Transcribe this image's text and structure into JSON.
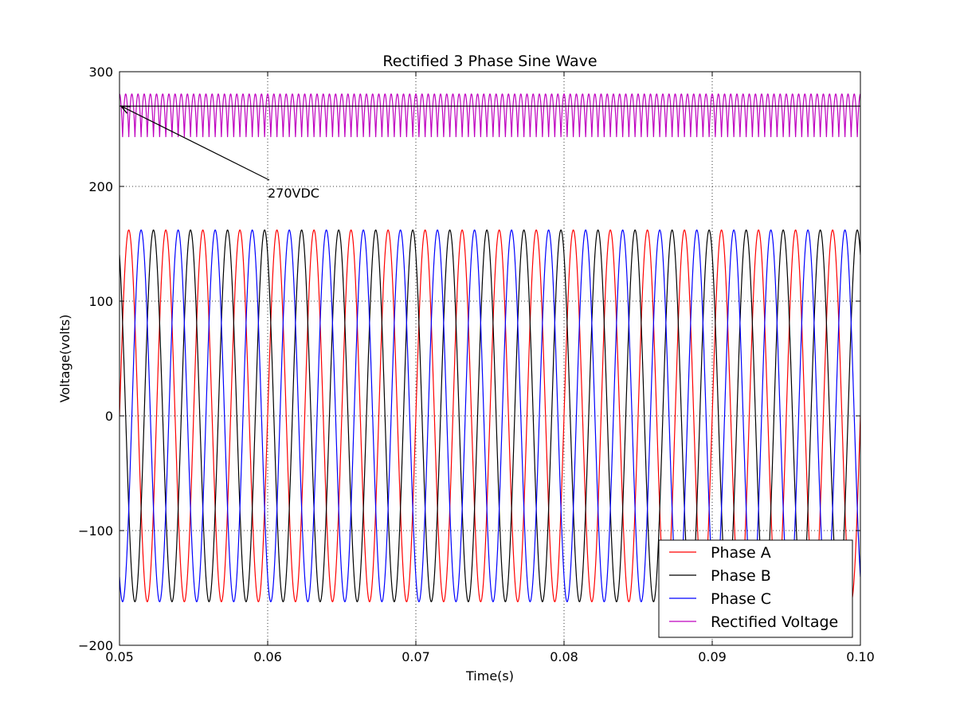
{
  "chart_data": {
    "type": "line",
    "title": "Rectified 3 Phase Sine Wave",
    "xlabel": "Time(s)",
    "ylabel": "Voltage(volts)",
    "xlim": [
      0.05,
      0.1
    ],
    "ylim": [
      -200,
      300
    ],
    "xticks": [
      0.05,
      0.06,
      0.07,
      0.08,
      0.09,
      0.1
    ],
    "xtick_labels": [
      "0.05",
      "0.06",
      "0.07",
      "0.08",
      "0.09",
      "0.10"
    ],
    "yticks": [
      -200,
      -100,
      0,
      100,
      200,
      300
    ],
    "ytick_labels": [
      "−200",
      "−100",
      "0",
      "100",
      "200",
      "300"
    ],
    "grid": true,
    "legend_position": "lower-right",
    "frequency_hz": 400,
    "series": [
      {
        "name": "Phase A",
        "color": "#ff0000",
        "kind": "sine",
        "amplitude": 162,
        "phase_deg": 0
      },
      {
        "name": "Phase B",
        "color": "#000000",
        "kind": "sine",
        "amplitude": 162,
        "phase_deg": 120
      },
      {
        "name": "Phase C",
        "color": "#0000ff",
        "kind": "sine",
        "amplitude": 162,
        "phase_deg": -120
      },
      {
        "name": "Rectified Voltage",
        "color": "#bf00bf",
        "kind": "rectified",
        "amplitude": 162
      }
    ],
    "reference_line": {
      "y": 270,
      "color": "#000000"
    },
    "annotation": {
      "text": "270VDC",
      "x": 0.06,
      "y": 200,
      "arrow_to_x": 0.05,
      "arrow_to_y": 270
    }
  }
}
